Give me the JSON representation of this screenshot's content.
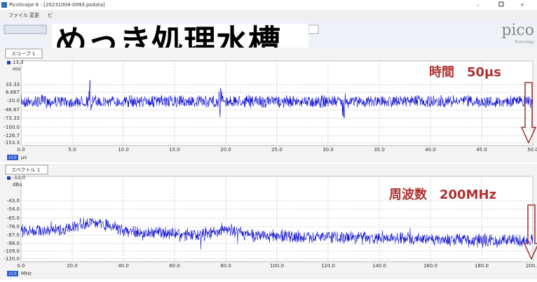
{
  "window": {
    "title": "PicoScope 6 - [20231004-0093.psdata]"
  },
  "menu": [
    "ファイル",
    "変更",
    "ビ"
  ],
  "overlay_title": "めっき処理水槽",
  "logo": {
    "name": "pico",
    "sub": "Technology"
  },
  "scope": {
    "tab": "スコープ 1",
    "y_unit": "mV",
    "y_top": "13.3",
    "y_labels": [
      "33.33",
      "6.667",
      "-20.0",
      "-46.67",
      "-73.33",
      "-100.0",
      "-126.7",
      "-153.3"
    ],
    "x_labels": [
      "0.0",
      "5.0",
      "10.0",
      "15.0",
      "20.0",
      "25.0",
      "30.0",
      "35.0",
      "40.0",
      "45.0",
      "50.0"
    ],
    "x_unit": "μs",
    "zoom": "x1.0",
    "annotation": "時間　50μs"
  },
  "spectrum": {
    "tab": "スペクトル 1",
    "y_unit": "dBu",
    "y_top": "-10.0",
    "y_labels": [
      "-43.0",
      "-54.0",
      "-65.0",
      "-76.0",
      "-87.0",
      "-98.0",
      "-109.0",
      "-120.0"
    ],
    "x_labels": [
      "0.0",
      "20.0",
      "40.0",
      "60.0",
      "80.0",
      "100.0",
      "120.0",
      "140.0",
      "160.0",
      "180.0",
      "200.0"
    ],
    "x_unit": "MHz",
    "zoom": "x1.0",
    "annotation": "周波数　200MHz"
  }
}
